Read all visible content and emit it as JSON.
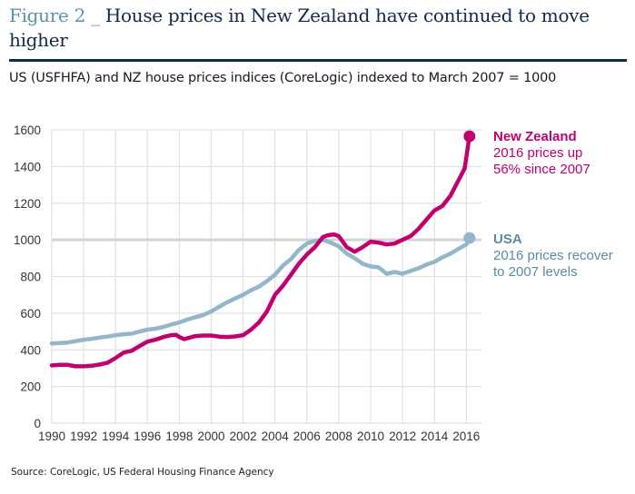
{
  "header": {
    "figure_label": "Figure 2 _ ",
    "title": "House prices in New Zealand have continued to move higher",
    "subtitle": "US (USFHFA) and NZ house prices indices (CoreLogic) indexed to March 2007 = 1000"
  },
  "source": "Source: CoreLogic, US Federal Housing Finance Agency",
  "colors": {
    "nz": "#c0006e",
    "usa": "#93b6c9",
    "usa_label": "#5b8aa3",
    "grid": "#e2e2e2",
    "ref_line": "#d4d4d4"
  },
  "chart_data": {
    "type": "line",
    "title": "US (USFHFA) and NZ house prices indices (CoreLogic) indexed to March 2007 = 1000",
    "xlabel": "",
    "ylabel": "",
    "xlim": [
      1990,
      2017
    ],
    "ylim": [
      0,
      1600
    ],
    "x_ticks": [
      "1990",
      "1992",
      "1994",
      "1996",
      "1998",
      "2000",
      "2002",
      "2004",
      "2006",
      "2008",
      "2010",
      "2012",
      "2014",
      "2016"
    ],
    "y_ticks": [
      "0",
      "200",
      "400",
      "600",
      "800",
      "1000",
      "1200",
      "1400",
      "1600"
    ],
    "grid": true,
    "reference_line": 1000,
    "series": [
      {
        "name": "New Zealand",
        "annotation_title": "New Zealand",
        "annotation_lines": [
          "2016 prices up",
          "56% since 2007"
        ],
        "x": [
          1990,
          1990.5,
          1991,
          1991.5,
          1992,
          1992.5,
          1993,
          1993.5,
          1994,
          1994.5,
          1995,
          1995.5,
          1996,
          1996.5,
          1997,
          1997.5,
          1997.8,
          1998,
          1998.3,
          1998.6,
          1999,
          1999.5,
          2000,
          2000.5,
          2001,
          2001.5,
          2002,
          2002.5,
          2003,
          2003.5,
          2004,
          2004.5,
          2005,
          2005.5,
          2006,
          2006.5,
          2007,
          2007.3,
          2007.7,
          2008,
          2008.5,
          2009,
          2009.5,
          2010,
          2010.5,
          2011,
          2011.5,
          2012,
          2012.5,
          2013,
          2013.5,
          2014,
          2014.5,
          2015,
          2015.3,
          2015.6,
          2015.9,
          2016.2
        ],
        "values": [
          315,
          318,
          318,
          310,
          310,
          313,
          320,
          330,
          355,
          385,
          395,
          420,
          445,
          455,
          470,
          480,
          482,
          470,
          458,
          465,
          475,
          478,
          478,
          472,
          470,
          473,
          480,
          510,
          550,
          610,
          700,
          750,
          810,
          870,
          920,
          960,
          1015,
          1025,
          1030,
          1020,
          960,
          935,
          960,
          990,
          985,
          975,
          980,
          1000,
          1020,
          1060,
          1110,
          1160,
          1185,
          1240,
          1290,
          1340,
          1390,
          1565
        ]
      },
      {
        "name": "USA",
        "annotation_title": "USA",
        "annotation_lines": [
          "2016 prices recover",
          "to 2007 levels"
        ],
        "x": [
          1990,
          1990.5,
          1991,
          1991.5,
          1992,
          1992.5,
          1993,
          1993.5,
          1994,
          1994.5,
          1995,
          1995.5,
          1996,
          1996.5,
          1997,
          1997.5,
          1998,
          1998.5,
          1999,
          1999.5,
          2000,
          2000.5,
          2001,
          2001.5,
          2002,
          2002.5,
          2003,
          2003.5,
          2004,
          2004.5,
          2005,
          2005.5,
          2006,
          2006.5,
          2007,
          2007.5,
          2008,
          2008.5,
          2009,
          2009.5,
          2010,
          2010.5,
          2011,
          2011.5,
          2012,
          2012.5,
          2013,
          2013.5,
          2014,
          2014.5,
          2015,
          2015.5,
          2016,
          2016.2
        ],
        "values": [
          435,
          437,
          440,
          448,
          455,
          460,
          467,
          472,
          480,
          485,
          488,
          500,
          510,
          515,
          525,
          538,
          550,
          565,
          578,
          590,
          610,
          635,
          660,
          680,
          700,
          725,
          745,
          775,
          810,
          860,
          895,
          945,
          980,
          995,
          1000,
          985,
          965,
          925,
          900,
          870,
          855,
          850,
          815,
          825,
          815,
          830,
          845,
          865,
          880,
          905,
          925,
          950,
          975,
          1010
        ]
      }
    ]
  }
}
